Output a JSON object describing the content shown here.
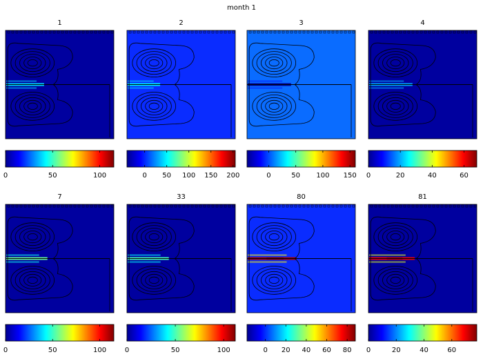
{
  "figure_title": "month  1",
  "colormap": [
    "#00008f",
    "#0000ff",
    "#0080ff",
    "#00ffff",
    "#80ff80",
    "#ffff00",
    "#ff8000",
    "#ff0000",
    "#800000"
  ],
  "contour_color": "#000000",
  "chart_data": [
    {
      "type": "heatmap",
      "title": "1",
      "background": "#00009f",
      "colorbar": {
        "range": [
          0,
          115
        ],
        "ticks": [
          0,
          50,
          100
        ]
      },
      "features": [
        {
          "kind": "channel",
          "peak": 40,
          "extent": 0.35,
          "hot": false
        }
      ]
    },
    {
      "type": "heatmap",
      "title": "2",
      "background": "#0a2cff",
      "colorbar": {
        "range": [
          -40,
          205
        ],
        "ticks": [
          0,
          50,
          100,
          150,
          200
        ]
      },
      "features": [
        {
          "kind": "channel",
          "peak": 50,
          "extent": 0.3,
          "hot": false
        }
      ]
    },
    {
      "type": "heatmap",
      "title": "3",
      "background": "#0a6cff",
      "colorbar": {
        "range": [
          -40,
          160
        ],
        "ticks": [
          0,
          50,
          100,
          150
        ]
      },
      "features": [
        {
          "kind": "channel",
          "peak": -40,
          "extent": 0.4,
          "hot": false
        }
      ]
    },
    {
      "type": "heatmap",
      "title": "4",
      "background": "#00009f",
      "colorbar": {
        "range": [
          0,
          68
        ],
        "ticks": [
          0,
          20,
          40,
          60
        ]
      },
      "features": [
        {
          "kind": "channel",
          "peak": 20,
          "extent": 0.4,
          "hot": false
        }
      ]
    },
    {
      "type": "heatmap",
      "title": "7",
      "background": "#00009f",
      "colorbar": {
        "range": [
          0,
          115
        ],
        "ticks": [
          0,
          50,
          100
        ]
      },
      "features": [
        {
          "kind": "channel",
          "peak": 55,
          "extent": 0.38,
          "hot": false
        }
      ]
    },
    {
      "type": "heatmap",
      "title": "33",
      "background": "#00009f",
      "colorbar": {
        "range": [
          0,
          112
        ],
        "ticks": [
          0,
          50,
          100
        ]
      },
      "features": [
        {
          "kind": "channel",
          "peak": 50,
          "extent": 0.38,
          "hot": false
        }
      ]
    },
    {
      "type": "heatmap",
      "title": "80",
      "background": "#0a2cff",
      "colorbar": {
        "range": [
          -18,
          88
        ],
        "ticks": [
          0,
          20,
          40,
          60,
          80
        ]
      },
      "features": [
        {
          "kind": "channel",
          "peak": 85,
          "extent": 0.45,
          "hot": true
        }
      ]
    },
    {
      "type": "heatmap",
      "title": "81",
      "background": "#00009f",
      "colorbar": {
        "range": [
          0,
          78
        ],
        "ticks": [
          0,
          20,
          40,
          60
        ]
      },
      "features": [
        {
          "kind": "channel",
          "peak": 70,
          "extent": 0.42,
          "hot": true
        }
      ]
    }
  ]
}
